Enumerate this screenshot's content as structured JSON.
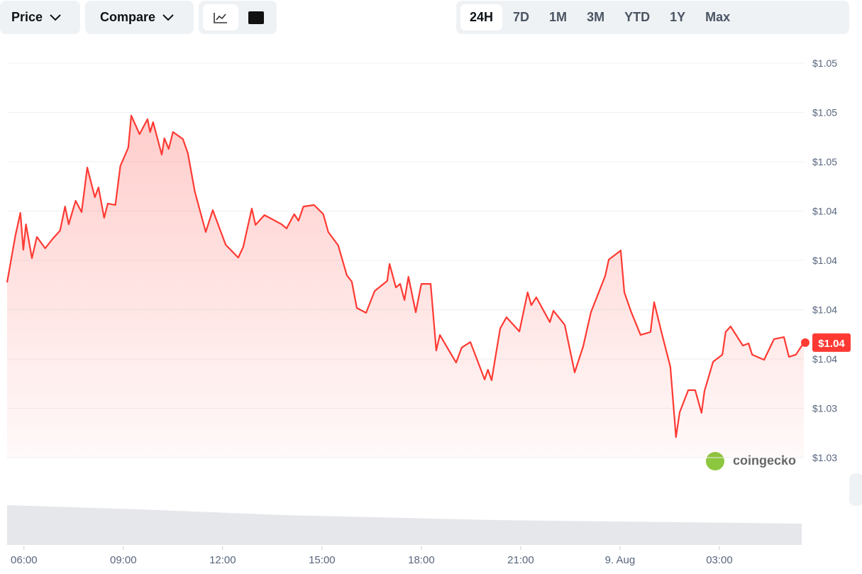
{
  "toolbar": {
    "price": "Price",
    "compare": "Compare",
    "ranges": [
      "24H",
      "7D",
      "1M",
      "3M",
      "YTD",
      "1Y",
      "Max"
    ]
  },
  "watermark": "coingecko",
  "chart_data": {
    "type": "line",
    "x": [
      5.49,
      5.74,
      5.89,
      5.98,
      6.06,
      6.24,
      6.39,
      6.64,
      6.86,
      7.09,
      7.24,
      7.35,
      7.56,
      7.74,
      7.91,
      8.14,
      8.25,
      8.42,
      8.53,
      8.76,
      8.91,
      9.15,
      9.24,
      9.49,
      9.73,
      9.81,
      9.9,
      10.16,
      10.24,
      10.37,
      10.5,
      10.8,
      10.95,
      11.16,
      11.49,
      11.7,
      12.09,
      12.47,
      12.62,
      12.88,
      12.99,
      13.26,
      13.78,
      13.93,
      14.16,
      14.29,
      14.44,
      14.76,
      15.04,
      15.19,
      15.49,
      15.75,
      15.9,
      16.05,
      16.33,
      16.59,
      16.97,
      17.04,
      17.23,
      17.36,
      17.49,
      17.61,
      17.83,
      18.0,
      18.28,
      18.45,
      18.56,
      18.81,
      19.05,
      19.22,
      19.48,
      19.91,
      20.01,
      20.12,
      20.38,
      20.57,
      20.96,
      21.21,
      21.32,
      21.47,
      21.88,
      21.99,
      22.33,
      22.63,
      22.89,
      23.12,
      23.55,
      23.66,
      24.02,
      24.13,
      24.34,
      24.62,
      24.92,
      25.03,
      25.26,
      25.52,
      25.69,
      25.8,
      26.06,
      26.27,
      26.46,
      26.55,
      26.81,
      27.09,
      27.19,
      27.34,
      27.71,
      27.88,
      27.99,
      28.35,
      28.65,
      28.95,
      29.1,
      29.31,
      29.55
    ],
    "series": [
      {
        "color": "#ff3a33",
        "values": [
          1.03888,
          1.04126,
          1.04241,
          1.04054,
          1.04183,
          1.04011,
          1.04119,
          1.04061,
          1.04108,
          1.04151,
          1.04273,
          1.04183,
          1.04302,
          1.04245,
          1.04471,
          1.0432,
          1.0437,
          1.04216,
          1.04288,
          1.04281,
          1.04478,
          1.04572,
          1.04734,
          1.0464,
          1.04716,
          1.04651,
          1.04701,
          1.04536,
          1.04619,
          1.04565,
          1.04651,
          1.04615,
          1.04543,
          1.04349,
          1.04144,
          1.04255,
          1.04079,
          1.04014,
          1.04068,
          1.04263,
          1.0418,
          1.0423,
          1.04183,
          1.04162,
          1.04234,
          1.04201,
          1.04273,
          1.04281,
          1.04234,
          1.04144,
          1.04076,
          1.03924,
          1.03892,
          1.03759,
          1.03734,
          1.03845,
          1.03896,
          1.03982,
          1.03863,
          1.03881,
          1.03799,
          1.03917,
          1.03737,
          1.03881,
          1.03881,
          1.03543,
          1.03622,
          1.0355,
          1.03482,
          1.03558,
          1.03586,
          1.03396,
          1.03446,
          1.03392,
          1.03655,
          1.03712,
          1.0364,
          1.03838,
          1.03773,
          1.03813,
          1.03687,
          1.03745,
          1.03673,
          1.03432,
          1.03565,
          1.03737,
          1.03921,
          1.04004,
          1.0405,
          1.03838,
          1.03737,
          1.03622,
          1.03637,
          1.03788,
          1.0363,
          1.0346,
          1.03104,
          1.0323,
          1.03342,
          1.03342,
          1.03227,
          1.03338,
          1.03486,
          1.03522,
          1.03637,
          1.03665,
          1.03568,
          1.03579,
          1.03522,
          1.03496,
          1.03601,
          1.03611,
          1.03511,
          1.03522,
          1.03583
        ]
      }
    ],
    "current_price": {
      "value": 1.03583,
      "label": "$1.04"
    },
    "xlim": [
      5.49,
      29.55
    ],
    "xticks": [
      {
        "value": 6,
        "label": "06:00"
      },
      {
        "value": 9,
        "label": "09:00"
      },
      {
        "value": 12,
        "label": "12:00"
      },
      {
        "value": 15,
        "label": "15:00"
      },
      {
        "value": 18,
        "label": "18:00"
      },
      {
        "value": 21,
        "label": "21:00"
      },
      {
        "value": 24,
        "label": "9. Aug"
      },
      {
        "value": 27,
        "label": "03:00"
      }
    ],
    "ylim": [
      1.03,
      1.05
    ],
    "yticks": [
      {
        "value": 1.03,
        "label": "$1.03"
      },
      {
        "value": 1.0325,
        "label": "$1.03"
      },
      {
        "value": 1.035,
        "label": "$1.04"
      },
      {
        "value": 1.0375,
        "label": "$1.04"
      },
      {
        "value": 1.04,
        "label": "$1.04"
      },
      {
        "value": 1.0425,
        "label": "$1.04"
      },
      {
        "value": 1.045,
        "label": "$1.05"
      },
      {
        "value": 1.0475,
        "label": "$1.05"
      },
      {
        "value": 1.05,
        "label": "$1.05"
      }
    ],
    "grid": true
  }
}
